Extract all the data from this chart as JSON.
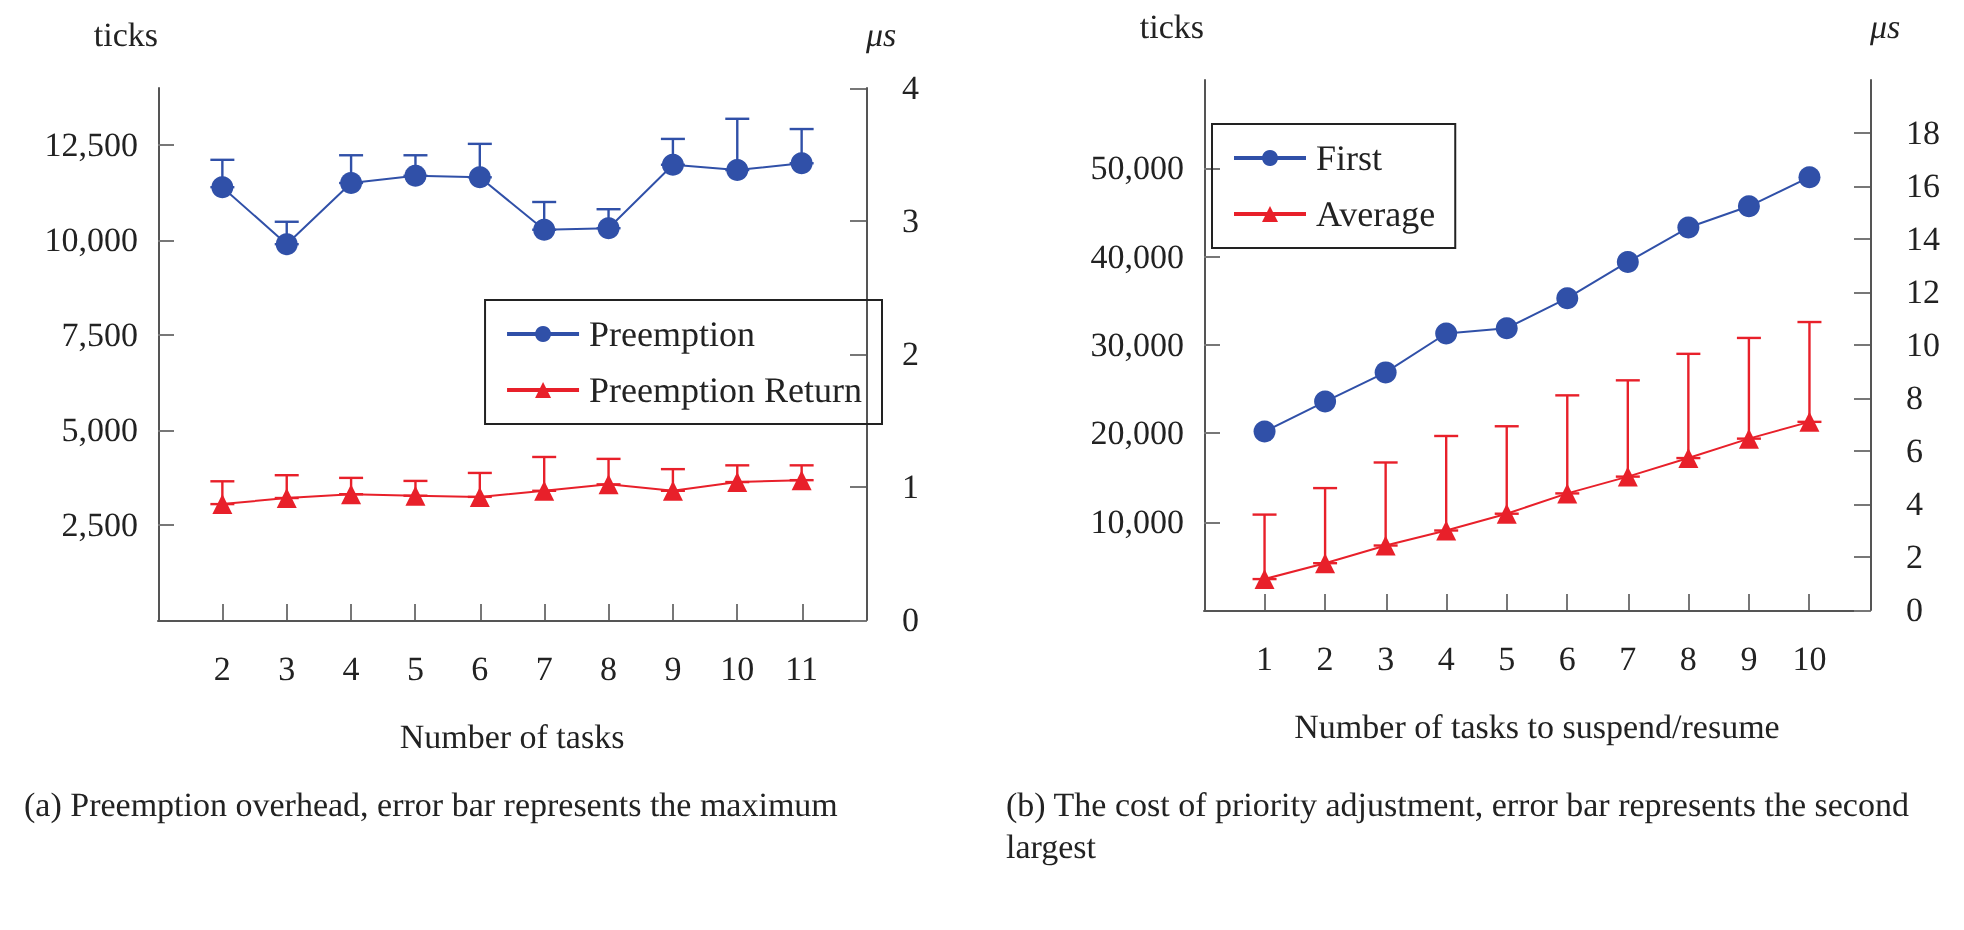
{
  "chart_data": [
    {
      "type": "line",
      "ylabel": "ticks",
      "y2label": "μs",
      "xlabel": "Number of tasks",
      "x": [
        2,
        3,
        4,
        5,
        6,
        7,
        8,
        9,
        10,
        11
      ],
      "xlim": [
        1,
        12
      ],
      "xticks": [
        2,
        3,
        4,
        5,
        6,
        7,
        8,
        9,
        10,
        11
      ],
      "ylim": [
        0,
        14000
      ],
      "yticks": [
        {
          "value": 2500,
          "label": "2,500"
        },
        {
          "value": 5000,
          "label": "5,000"
        },
        {
          "value": 7500,
          "label": "7,500"
        },
        {
          "value": 10000,
          "label": "10,000"
        },
        {
          "value": 12500,
          "label": "12,500"
        }
      ],
      "y2lim": [
        0,
        4
      ],
      "y2ticks": [
        0,
        1,
        2,
        3,
        4
      ],
      "legend": "right",
      "grid": false,
      "series": [
        {
          "name": "Preemption",
          "color": "#3050a8",
          "marker": "circle",
          "values": [
            11390,
            9890,
            11500,
            11690,
            11650,
            10270,
            10310,
            11980,
            11840,
            12020
          ],
          "errors": [
            [
              11390,
              12110
            ],
            [
              9890,
              10480
            ],
            [
              11500,
              12230
            ],
            [
              11690,
              12230
            ],
            [
              11650,
              12530
            ],
            [
              10270,
              11000
            ],
            [
              10310,
              10810
            ],
            [
              11980,
              12660
            ],
            [
              11840,
              13190
            ],
            [
              12020,
              12920
            ]
          ]
        },
        {
          "name": "Preemption Return",
          "color": "#e8202a",
          "marker": "triangle",
          "values": [
            3050,
            3210,
            3310,
            3270,
            3240,
            3400,
            3570,
            3400,
            3630,
            3680
          ],
          "errors": [
            [
              3050,
              3650
            ],
            [
              3210,
              3810
            ],
            [
              3310,
              3740
            ],
            [
              3270,
              3660
            ],
            [
              3240,
              3870
            ],
            [
              3400,
              4290
            ],
            [
              3570,
              4240
            ],
            [
              3400,
              3970
            ],
            [
              3630,
              4070
            ],
            [
              3680,
              4070
            ]
          ]
        }
      ],
      "annotations": [
        "(a) Preemption overhead, error bar represents the maximum"
      ]
    },
    {
      "type": "line",
      "ylabel": "ticks",
      "y2label": "μs",
      "xlabel": "Number of tasks to suspend/resume",
      "x": [
        1,
        2,
        3,
        4,
        5,
        6,
        7,
        8,
        9,
        10
      ],
      "xlim": [
        0,
        11
      ],
      "xticks": [
        1,
        2,
        3,
        4,
        5,
        6,
        7,
        8,
        9,
        10
      ],
      "ylim": [
        0,
        60000
      ],
      "yticks": [
        {
          "value": 10000,
          "label": "10,000"
        },
        {
          "value": 20000,
          "label": "20,000"
        },
        {
          "value": 30000,
          "label": "30,000"
        },
        {
          "value": 40000,
          "label": "40,000"
        },
        {
          "value": 50000,
          "label": "50,000"
        }
      ],
      "y2lim": [
        0,
        20
      ],
      "y2ticks": [
        0,
        2,
        4,
        6,
        8,
        10,
        12,
        14,
        16,
        18
      ],
      "legend": "top left",
      "grid": false,
      "series": [
        {
          "name": "First",
          "color": "#3050a8",
          "marker": "circle",
          "values": [
            20200,
            23600,
            26900,
            31300,
            31900,
            35300,
            39400,
            43300,
            45700,
            49000
          ]
        },
        {
          "name": "Average",
          "color": "#e8202a",
          "marker": "triangle",
          "values": [
            3500,
            5300,
            7300,
            9000,
            10900,
            13200,
            15100,
            17200,
            19400,
            21300
          ],
          "errors": [
            [
              3500,
              10800
            ],
            [
              5300,
              13800
            ],
            [
              7300,
              16700
            ],
            [
              9000,
              19700
            ],
            [
              10900,
              20800
            ],
            [
              13200,
              24300
            ],
            [
              15100,
              26000
            ],
            [
              17200,
              29000
            ],
            [
              19400,
              30800
            ],
            [
              21300,
              32600
            ]
          ]
        }
      ],
      "annotations": [
        "(b) The cost of priority adjustment, error bar represents the second largest"
      ]
    }
  ]
}
